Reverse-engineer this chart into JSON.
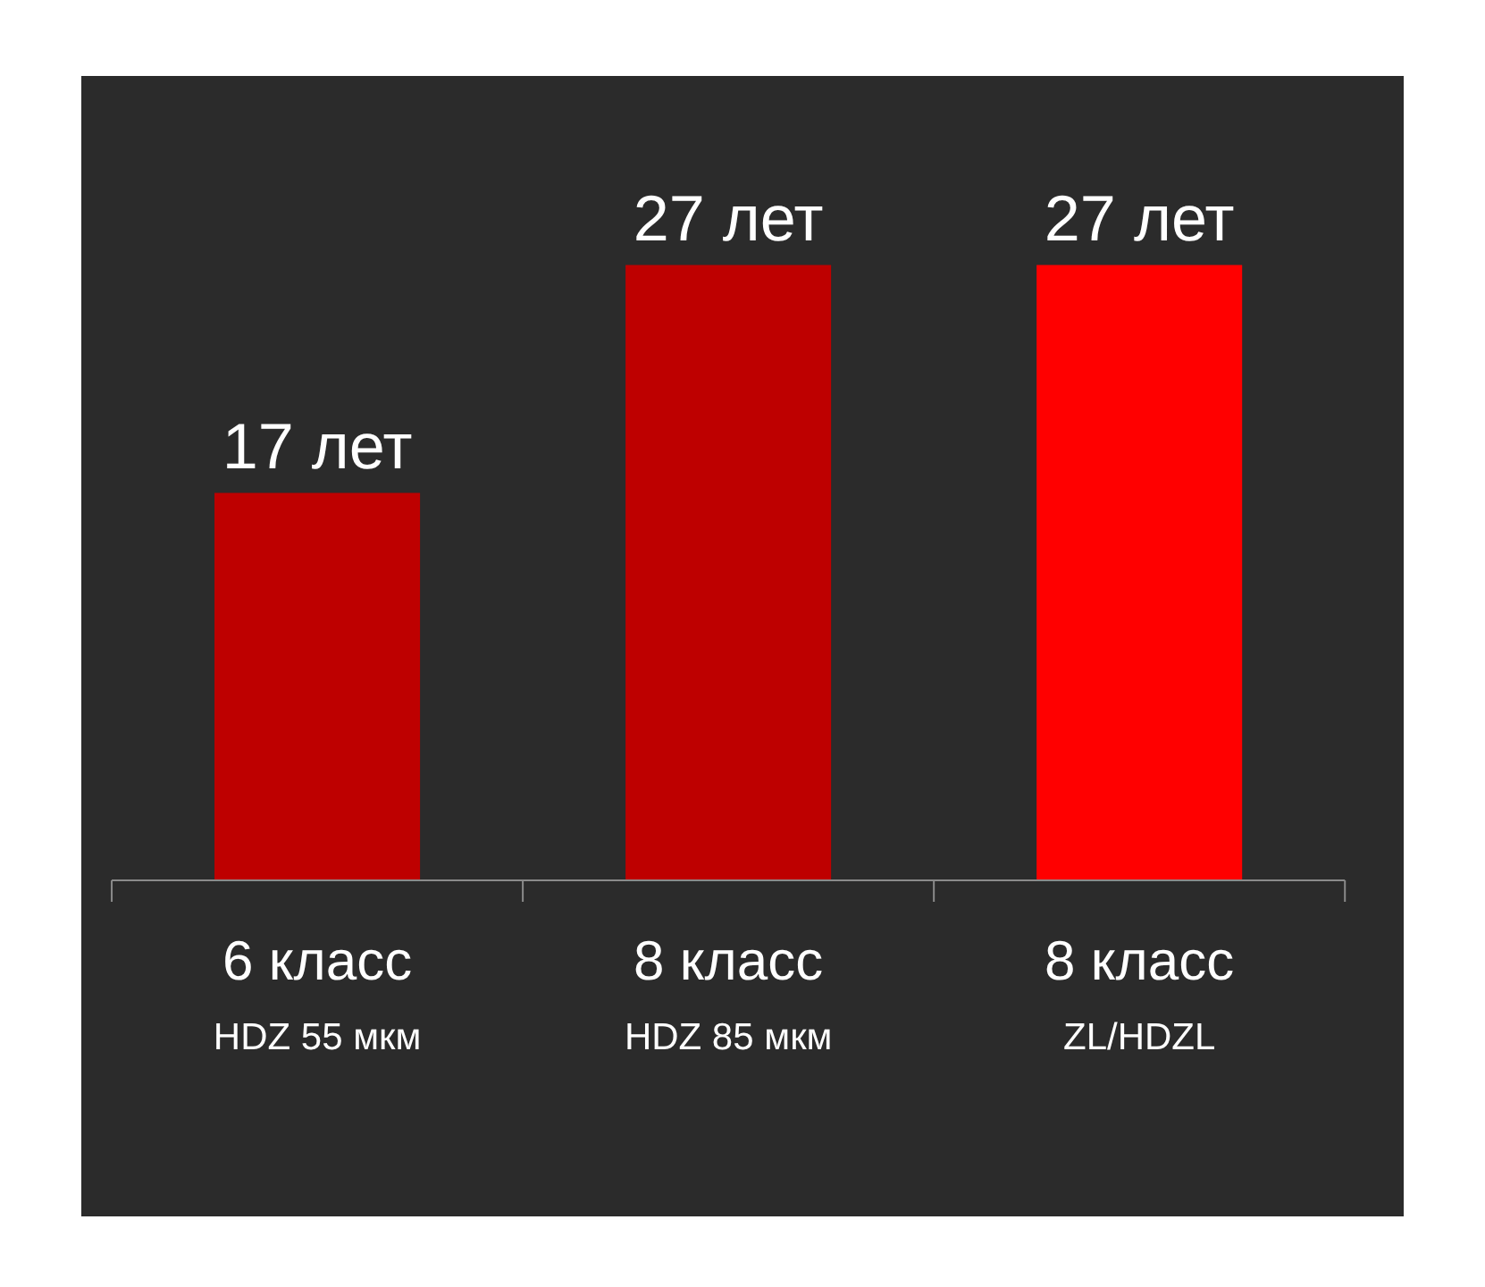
{
  "chart_data": {
    "type": "bar",
    "categories": [
      "6 класс\nHDZ 55 мкм",
      "8 класс\nHDZ 85 мкм",
      "8 класс\nZL/HDZL"
    ],
    "values": [
      17,
      27,
      27
    ],
    "value_labels": [
      "17 лет",
      "27 лет",
      "27 лет"
    ],
    "colors": [
      "#be0000",
      "#be0000",
      "#ff0000"
    ],
    "ylim": [
      0,
      35.3
    ],
    "grid": false
  }
}
